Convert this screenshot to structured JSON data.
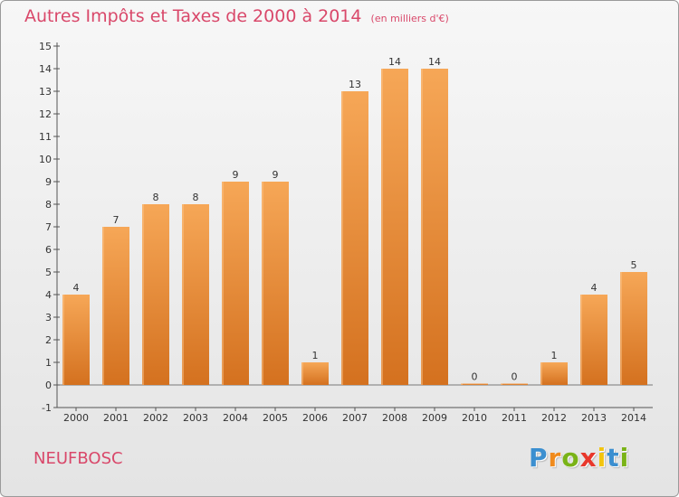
{
  "header": {
    "title": "Autres Impôts et Taxes de 2000 à 2014",
    "unit": "(en milliers d'€)"
  },
  "footer": {
    "location": "NEUFBOSC",
    "logo": [
      "P",
      "r",
      "o",
      "x",
      "i",
      "t",
      "i"
    ]
  },
  "colors": {
    "title": "#d9486a",
    "bar_light": "#f6a757",
    "bar_dark": "#d4711f",
    "logo_letters": [
      "#3b8fd0",
      "#f08a1c",
      "#7ab317",
      "#e8372b",
      "#f2c40f",
      "#3b8fd0",
      "#7ab317"
    ]
  },
  "chart_data": {
    "type": "bar",
    "title": "Autres Impôts et Taxes de 2000 à 2014",
    "subtitle": "(en milliers d'€)",
    "categories": [
      "2000",
      "2001",
      "2002",
      "2003",
      "2004",
      "2005",
      "2006",
      "2007",
      "2008",
      "2009",
      "2010",
      "2011",
      "2012",
      "2013",
      "2014"
    ],
    "values": [
      4,
      7,
      8,
      8,
      9,
      9,
      1,
      13,
      14,
      14,
      0,
      0,
      1,
      4,
      5
    ],
    "data_labels": [
      "4",
      "7",
      "8",
      "8",
      "9",
      "9",
      "1",
      "13",
      "14",
      "14",
      "0",
      "0",
      "1",
      "4",
      "5"
    ],
    "y_ticks": [
      "-1",
      "0",
      "1",
      "2",
      "3",
      "4",
      "5",
      "6",
      "7",
      "8",
      "9",
      "10",
      "11",
      "12",
      "13",
      "14",
      "15"
    ],
    "ylim": [
      -1,
      15
    ],
    "xlabel": "",
    "ylabel": "",
    "grid": false,
    "legend": "none"
  }
}
